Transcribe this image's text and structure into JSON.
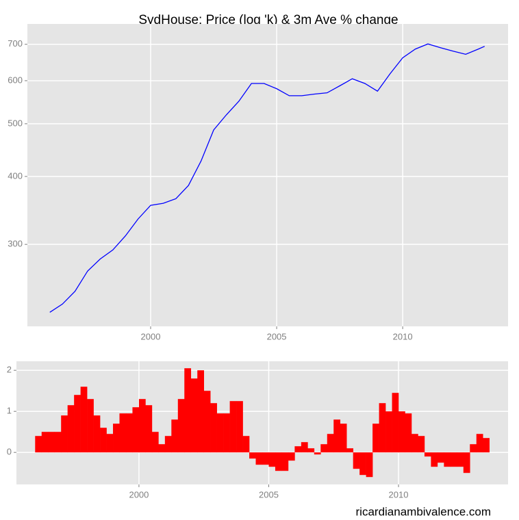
{
  "chart_data": [
    {
      "type": "line",
      "title": "SydHouse: Price (log 'k) & 3m Ave % change",
      "log_y": true,
      "grid": true,
      "x": [
        1996.0,
        1996.5,
        1997.0,
        1997.5,
        1998.0,
        1998.5,
        1999.0,
        1999.5,
        2000.0,
        2000.5,
        2001.0,
        2001.5,
        2002.0,
        2002.5,
        2003.0,
        2003.5,
        2004.0,
        2004.5,
        2005.0,
        2005.5,
        2006.0,
        2006.5,
        2007.0,
        2007.5,
        2008.0,
        2008.5,
        2009.0,
        2009.5,
        2010.0,
        2010.5,
        2011.0,
        2011.5,
        2012.0,
        2012.5,
        2013.0,
        2013.25
      ],
      "series": [
        {
          "color": "#0000ff",
          "values": [
            225,
            233,
            246,
            268,
            282,
            293,
            311,
            334,
            354,
            357,
            364,
            385,
            427,
            487,
            519,
            550,
            593,
            593,
            580,
            563,
            563,
            567,
            570,
            587,
            605,
            593,
            574,
            618,
            661,
            686,
            701,
            690,
            680,
            671,
            686,
            694
          ]
        }
      ],
      "xlim": [
        1995.11,
        2014.18
      ],
      "xticks": [
        2000,
        2005,
        2010
      ],
      "ylim": [
        212,
        763
      ],
      "yticks": [
        300,
        400,
        500,
        600,
        700
      ]
    },
    {
      "type": "bar",
      "grid": true,
      "bar_width": 0.25,
      "x": [
        1996.0,
        1996.25,
        1996.5,
        1996.75,
        1997.0,
        1997.25,
        1997.5,
        1997.75,
        1998.0,
        1998.25,
        1998.5,
        1998.75,
        1999.0,
        1999.25,
        1999.5,
        1999.75,
        2000.0,
        2000.25,
        2000.5,
        2000.75,
        2001.0,
        2001.25,
        2001.5,
        2001.75,
        2002.0,
        2002.25,
        2002.5,
        2002.75,
        2003.0,
        2003.25,
        2003.5,
        2003.75,
        2004.0,
        2004.25,
        2004.5,
        2004.75,
        2005.0,
        2005.25,
        2005.5,
        2005.75,
        2006.0,
        2006.25,
        2006.5,
        2006.75,
        2007.0,
        2007.25,
        2007.5,
        2007.75,
        2008.0,
        2008.25,
        2008.5,
        2008.75,
        2009.0,
        2009.25,
        2009.5,
        2009.75,
        2010.0,
        2010.25,
        2010.5,
        2010.75,
        2011.0,
        2011.25,
        2011.5,
        2011.75,
        2012.0,
        2012.25,
        2012.5,
        2012.75,
        2013.0,
        2013.25
      ],
      "series": [
        {
          "color": "#ff0000",
          "values": [
            0.4,
            0.5,
            0.5,
            0.5,
            0.9,
            1.15,
            1.4,
            1.6,
            1.3,
            0.9,
            0.6,
            0.45,
            0.7,
            0.95,
            0.95,
            1.1,
            1.3,
            1.15,
            0.5,
            0.2,
            0.4,
            0.8,
            1.3,
            2.05,
            1.8,
            2.0,
            1.5,
            1.2,
            0.95,
            0.95,
            1.25,
            1.25,
            0.4,
            -0.15,
            -0.3,
            -0.3,
            -0.35,
            -0.45,
            -0.45,
            -0.2,
            0.15,
            0.25,
            0.1,
            -0.05,
            0.2,
            0.45,
            0.8,
            0.7,
            0.1,
            -0.4,
            -0.55,
            -0.6,
            0.7,
            1.2,
            1.0,
            1.45,
            1.0,
            0.95,
            0.45,
            0.4,
            -0.1,
            -0.35,
            -0.25,
            -0.35,
            -0.35,
            -0.35,
            -0.5,
            0.2,
            0.45,
            0.35
          ]
        }
      ],
      "xlim": [
        1995.28,
        2014.22
      ],
      "xticks": [
        2000,
        2005,
        2010
      ],
      "ylim": [
        -0.78,
        2.22
      ],
      "yticks": [
        0,
        1,
        2
      ]
    }
  ],
  "watermark": "ricardianambivalence.com"
}
